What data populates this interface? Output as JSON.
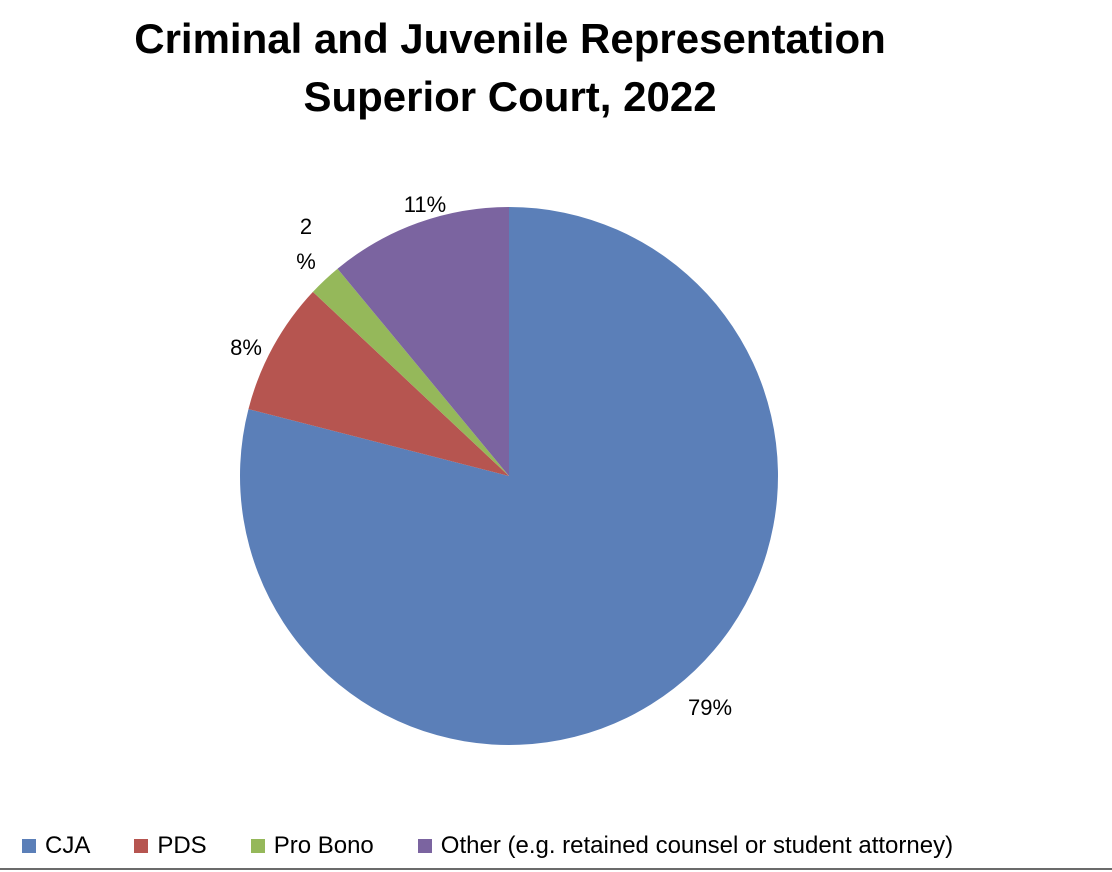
{
  "title_lines": [
    "Criminal and Juvenile Representation",
    "Superior Court, 2022"
  ],
  "chart_data": {
    "type": "pie",
    "title": "Criminal and Juvenile Representation Superior Court, 2022",
    "categories": [
      "CJA",
      "PDS",
      "Pro Bono",
      "Other (e.g. retained counsel or student attorney)"
    ],
    "values": [
      79,
      8,
      2,
      11
    ],
    "labels": [
      "79%",
      "8%",
      "2\n%",
      "11%"
    ],
    "colors": [
      "#5b7fb8",
      "#b65550",
      "#95b85a",
      "#7b64a0"
    ],
    "legend_position": "bottom"
  }
}
